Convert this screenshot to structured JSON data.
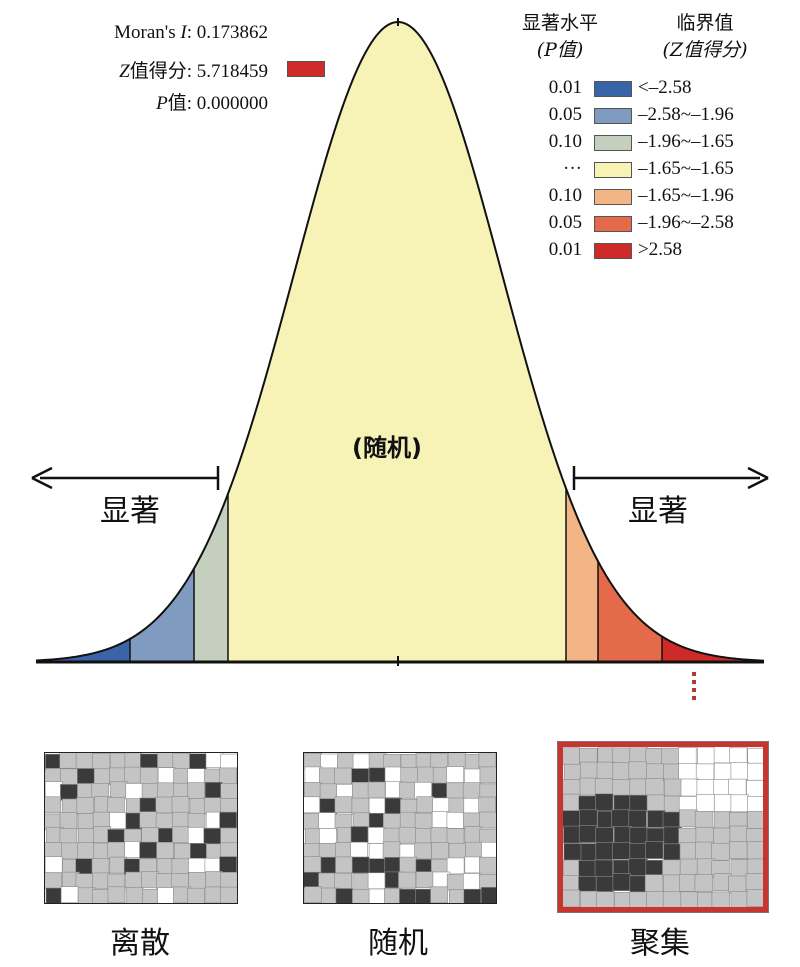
{
  "stats": {
    "moran_label": "Moran's ",
    "moran_italic": "I",
    "moran_value": ": 0.173862",
    "z_italic": "Z",
    "z_label": "值得分",
    "z_value": ": 5.718459",
    "p_italic": "P",
    "p_label": "值",
    "p_value": ": 0.000000",
    "z_marker_color": "#d12a2a"
  },
  "legend": {
    "header_left_line1": "显著水平",
    "header_left_line2": "(P值)",
    "header_right_line1": "临界值",
    "header_right_line2": "(Z值得分)",
    "rows": [
      {
        "p": "0.01",
        "z": "<–2.58",
        "color": "#3a64a8"
      },
      {
        "p": "0.05",
        "z": "–2.58~–1.96",
        "color": "#7f9cc0"
      },
      {
        "p": "0.10",
        "z": "–1.96~–1.65",
        "color": "#c4cfbe"
      },
      {
        "p": "···",
        "z": "–1.65~–1.65",
        "color": "#f7f3b6"
      },
      {
        "p": "0.10",
        "z": "–1.65~–1.96",
        "color": "#f3b585"
      },
      {
        "p": "0.05",
        "z": "–1.96~–2.58",
        "color": "#e56a4a"
      },
      {
        "p": "0.01",
        "z": ">2.58",
        "color": "#cf2a2a"
      }
    ]
  },
  "curve": {
    "center_label": "(随机)",
    "left_label": "显著",
    "right_label": "显著"
  },
  "maps": [
    {
      "caption": "离散",
      "highlighted": false
    },
    {
      "caption": "随机",
      "highlighted": false
    },
    {
      "caption": "聚集",
      "highlighted": true
    }
  ]
}
